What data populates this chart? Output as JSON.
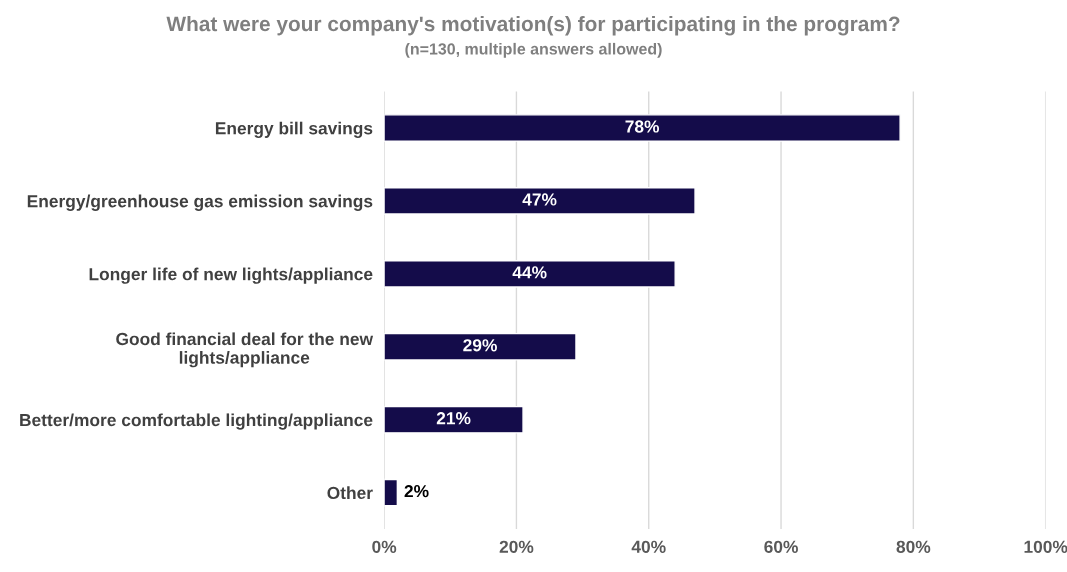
{
  "chart_data": {
    "type": "bar",
    "orientation": "horizontal",
    "title": "What were your company's motivation(s) for participating in the program?",
    "subtitle": "(n=130, multiple answers allowed)",
    "categories": [
      "Energy bill savings",
      "Energy/greenhouse gas emission savings",
      "Longer life of new lights/appliance",
      "Good financial deal for the new\nlights/appliance",
      "Better/more comfortable lighting/appliance",
      "Other"
    ],
    "values": [
      78,
      47,
      44,
      29,
      21,
      2
    ],
    "color": "#140c4a",
    "value_labels": [
      "78%",
      "47%",
      "44%",
      "29%",
      "21%",
      "2%"
    ],
    "xlim": [
      0,
      100
    ],
    "xticks": [
      {
        "value": 0,
        "label": "0%"
      },
      {
        "value": 20,
        "label": "20%"
      },
      {
        "value": 40,
        "label": "40%"
      },
      {
        "value": 60,
        "label": "60%"
      },
      {
        "value": 80,
        "label": "80%"
      },
      {
        "value": 100,
        "label": "100%"
      }
    ],
    "grid": "x"
  }
}
